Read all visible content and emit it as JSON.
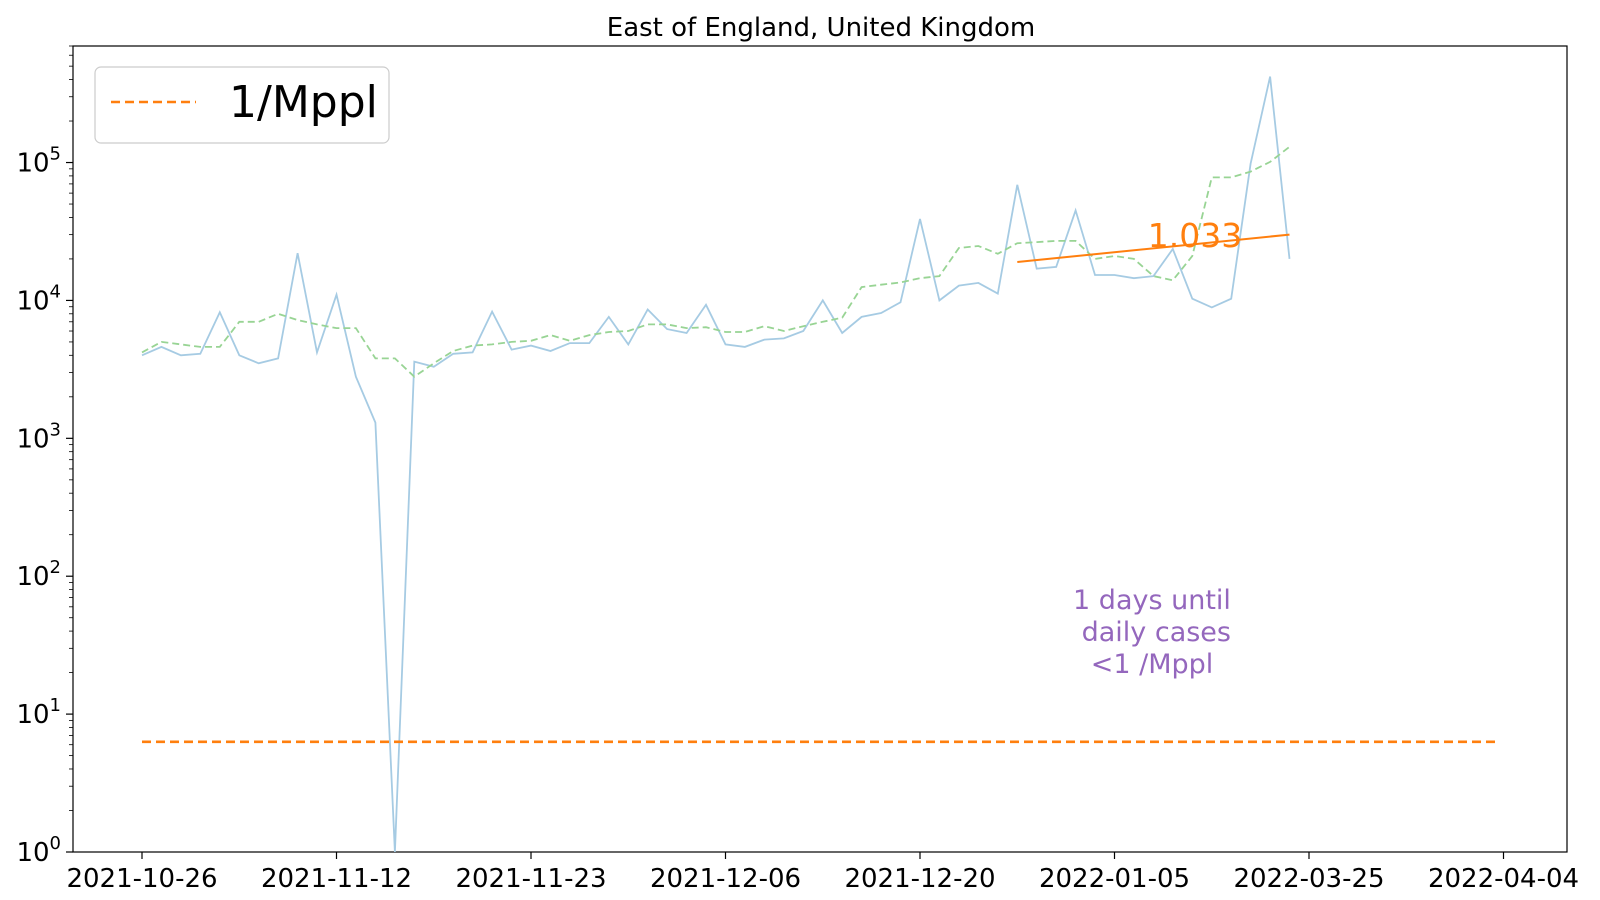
{
  "chart_data": {
    "type": "line",
    "title": "East of England, United Kingdom",
    "xlabel": "",
    "ylabel": "",
    "y_scale": "log",
    "ylim": [
      1,
      700000
    ],
    "y_ticks": [
      {
        "value": 1,
        "base": "10",
        "exp": "0"
      },
      {
        "value": 10,
        "base": "10",
        "exp": "1"
      },
      {
        "value": 100,
        "base": "10",
        "exp": "2"
      },
      {
        "value": 1000,
        "base": "10",
        "exp": "3"
      },
      {
        "value": 10000,
        "base": "10",
        "exp": "4"
      },
      {
        "value": 100000,
        "base": "10",
        "exp": "5"
      }
    ],
    "x_ticks": [
      "2021-10-26",
      "2021-11-12",
      "2021-11-23",
      "2021-12-06",
      "2021-12-20",
      "2022-01-05",
      "2022-03-25",
      "2022-04-04"
    ],
    "grid": false,
    "legend": {
      "position": "top-left",
      "entries": [
        {
          "label": "1/Mppl",
          "color": "#ff7f0e",
          "style": "dashed"
        }
      ]
    },
    "series": [
      {
        "role": "daily cases",
        "color": "#a6cbe3",
        "style": "solid",
        "values": [
          4000,
          4600,
          4000,
          4100,
          8200,
          4000,
          3500,
          3800,
          22000,
          4200,
          11000,
          2800,
          1300,
          0,
          3600,
          3300,
          4100,
          4200,
          8300,
          4400,
          4700,
          4300,
          4900,
          4900,
          7600,
          4800,
          8600,
          6200,
          5800,
          9300,
          4800,
          4600,
          5200,
          5300,
          6000,
          10000,
          5800,
          7600,
          8100,
          9700,
          39000,
          10000,
          12800,
          13400,
          11200,
          69000,
          17000,
          17500,
          45000,
          15300,
          15300,
          14500,
          15000,
          23600,
          10300,
          8900,
          10300,
          98000,
          420000,
          20000
        ]
      },
      {
        "role": "7-day average",
        "color": "#98d494",
        "style": "dashed",
        "values": [
          4200,
          5000,
          4800,
          4600,
          4600,
          7000,
          7000,
          8000,
          7200,
          6700,
          6300,
          6300,
          3800,
          3800,
          2800,
          3500,
          4300,
          4700,
          4800,
          5000,
          5100,
          5600,
          5100,
          5600,
          5900,
          6000,
          6700,
          6700,
          6300,
          6400,
          5900,
          5900,
          6500,
          6000,
          6500,
          7000,
          7500,
          12500,
          13000,
          13500,
          14500,
          15000,
          24000,
          24800,
          21800,
          26000,
          26500,
          27000,
          27000,
          20000,
          21000,
          20000,
          15000,
          14000,
          21000,
          78000,
          78000,
          86000,
          101000,
          130000
        ]
      },
      {
        "role": "trend fit",
        "color": "#ff7f0e",
        "style": "solid",
        "x_index": [
          45,
          59
        ],
        "values": [
          19000,
          30000
        ]
      },
      {
        "name": "1/Mppl",
        "color": "#ff7f0e",
        "style": "dashed",
        "x_index": [
          0,
          70
        ],
        "values": [
          6.3,
          6.3
        ]
      }
    ],
    "annotations": [
      {
        "text": "1.033",
        "color": "#ff7f0e"
      },
      {
        "text": "1 days until\n daily cases\n<1 /Mppl",
        "color": "#9467bd"
      }
    ]
  }
}
